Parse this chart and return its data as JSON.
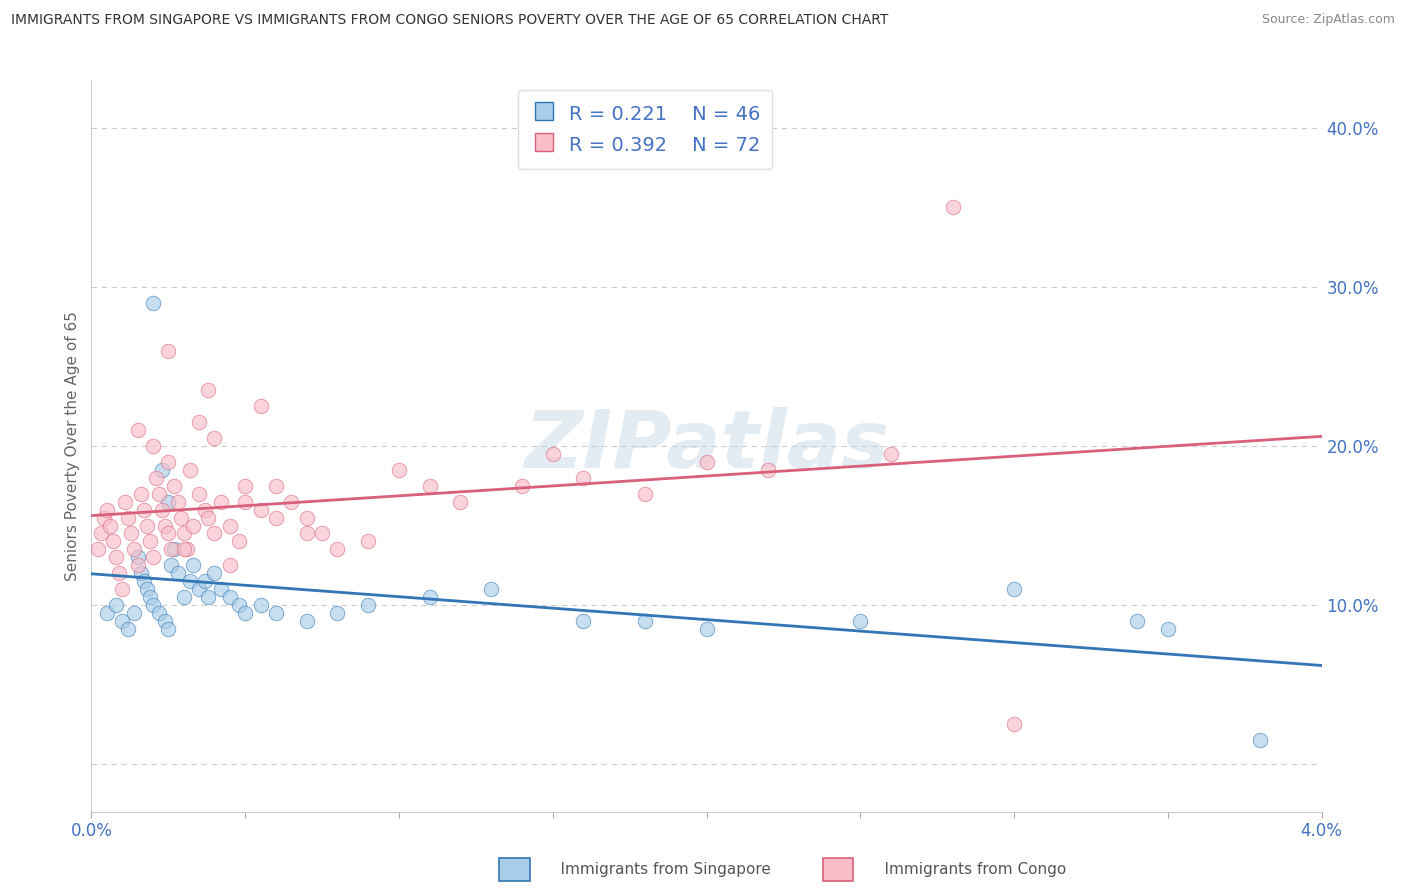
{
  "title": "IMMIGRANTS FROM SINGAPORE VS IMMIGRANTS FROM CONGO SENIORS POVERTY OVER THE AGE OF 65 CORRELATION CHART",
  "source": "Source: ZipAtlas.com",
  "ylabel": "Seniors Poverty Over the Age of 65",
  "xlim": [
    0.0,
    4.0
  ],
  "ylim": [
    -3.0,
    43.0
  ],
  "yticks": [
    0.0,
    10.0,
    20.0,
    30.0,
    40.0
  ],
  "ytick_labels": [
    "",
    "10.0%",
    "20.0%",
    "30.0%",
    "40.0%"
  ],
  "legend_r1": "R = 0.221",
  "legend_n1": "N = 46",
  "legend_r2": "R = 0.392",
  "legend_n2": "N = 72",
  "color_singapore": "#a8cde8",
  "color_congo": "#f9bec8",
  "color_singapore_line": "#3276b5",
  "color_congo_line": "#d9607a",
  "watermark_text": "ZIPatlas",
  "sg_x": [
    0.05,
    0.08,
    0.1,
    0.12,
    0.14,
    0.15,
    0.16,
    0.17,
    0.18,
    0.19,
    0.2,
    0.22,
    0.23,
    0.24,
    0.25,
    0.26,
    0.27,
    0.28,
    0.3,
    0.32,
    0.33,
    0.35,
    0.37,
    0.38,
    0.4,
    0.42,
    0.45,
    0.48,
    0.5,
    0.55,
    0.6,
    0.7,
    0.8,
    0.9,
    1.1,
    1.3,
    1.6,
    2.0,
    2.5,
    3.0,
    3.5,
    3.8,
    0.2,
    0.25,
    3.4,
    1.8
  ],
  "sg_y": [
    9.5,
    10.0,
    9.0,
    8.5,
    9.5,
    13.0,
    12.0,
    11.5,
    11.0,
    10.5,
    10.0,
    9.5,
    18.5,
    9.0,
    8.5,
    12.5,
    13.5,
    12.0,
    10.5,
    11.5,
    12.5,
    11.0,
    11.5,
    10.5,
    12.0,
    11.0,
    10.5,
    10.0,
    9.5,
    10.0,
    9.5,
    9.0,
    9.5,
    10.0,
    10.5,
    11.0,
    9.0,
    8.5,
    9.0,
    11.0,
    8.5,
    1.5,
    29.0,
    16.5,
    9.0,
    9.0
  ],
  "co_x": [
    0.02,
    0.03,
    0.04,
    0.05,
    0.06,
    0.07,
    0.08,
    0.09,
    0.1,
    0.11,
    0.12,
    0.13,
    0.14,
    0.15,
    0.16,
    0.17,
    0.18,
    0.19,
    0.2,
    0.21,
    0.22,
    0.23,
    0.24,
    0.25,
    0.26,
    0.27,
    0.28,
    0.29,
    0.3,
    0.31,
    0.32,
    0.33,
    0.35,
    0.37,
    0.38,
    0.4,
    0.42,
    0.45,
    0.48,
    0.5,
    0.55,
    0.6,
    0.65,
    0.7,
    0.75,
    0.8,
    0.9,
    1.0,
    1.1,
    1.2,
    1.4,
    1.6,
    1.8,
    2.0,
    2.2,
    2.6,
    2.8,
    0.15,
    0.2,
    0.25,
    0.3,
    0.35,
    0.4,
    0.5,
    0.6,
    0.7,
    1.5,
    0.25,
    0.45,
    0.55,
    3.0,
    0.38
  ],
  "co_y": [
    13.5,
    14.5,
    15.5,
    16.0,
    15.0,
    14.0,
    13.0,
    12.0,
    11.0,
    16.5,
    15.5,
    14.5,
    13.5,
    12.5,
    17.0,
    16.0,
    15.0,
    14.0,
    13.0,
    18.0,
    17.0,
    16.0,
    15.0,
    14.5,
    13.5,
    17.5,
    16.5,
    15.5,
    14.5,
    13.5,
    18.5,
    15.0,
    17.0,
    16.0,
    15.5,
    14.5,
    16.5,
    15.0,
    14.0,
    17.5,
    16.0,
    17.5,
    16.5,
    15.5,
    14.5,
    13.5,
    14.0,
    18.5,
    17.5,
    16.5,
    17.5,
    18.0,
    17.0,
    19.0,
    18.5,
    19.5,
    35.0,
    21.0,
    20.0,
    19.0,
    13.5,
    21.5,
    20.5,
    16.5,
    15.5,
    14.5,
    19.5,
    26.0,
    12.5,
    22.5,
    2.5,
    23.5
  ]
}
